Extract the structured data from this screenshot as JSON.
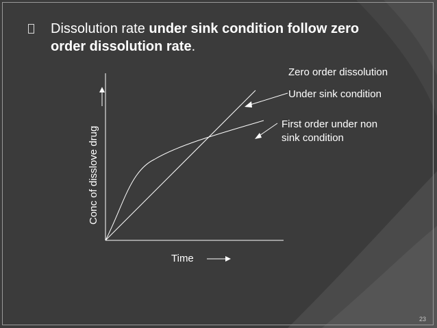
{
  "slide": {
    "bullet_icon": "square-bullet-icon",
    "text_regular_1": "Dissolution rate ",
    "text_bold_1": "under sink condition follow zero",
    "text_bold_2": "order dissolution rate",
    "text_regular_2": ".",
    "page_number": "23"
  },
  "diagram": {
    "x_axis_label": "Time",
    "y_axis_label": "Conc of disslove drug",
    "legend_zero_order": "Zero order dissolution",
    "legend_under_sink": "Under sink condition",
    "legend_first_order_line1": "First order under non",
    "legend_first_order_line2": "sink condition"
  }
}
